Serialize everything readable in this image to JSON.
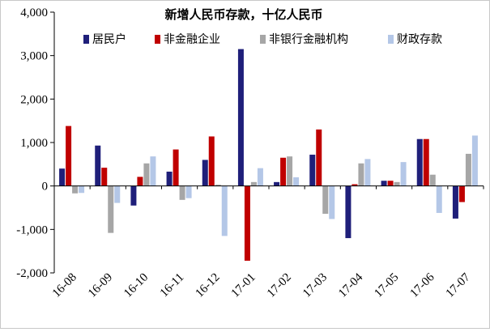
{
  "chart_data": {
    "type": "bar",
    "title": "新增人民币存款，十亿人民币",
    "xlabel": "",
    "ylabel": "",
    "ylim": [
      -2000,
      4000
    ],
    "yticks": [
      4000,
      3000,
      2000,
      1000,
      0,
      -1000,
      -2000
    ],
    "ytick_labels": [
      "4,000",
      "3,000",
      "2,000",
      "1,000",
      "0",
      "-1,000",
      "-2,000"
    ],
    "categories": [
      "16-08",
      "16-09",
      "16-10",
      "16-11",
      "16-12",
      "17-01",
      "17-02",
      "17-03",
      "17-04",
      "17-05",
      "17-06",
      "17-07"
    ],
    "legend_position": "top-right",
    "grid": false,
    "series": [
      {
        "name": "居民户",
        "color": "#1f1f7a",
        "values": [
          400,
          930,
          -450,
          330,
          600,
          3150,
          90,
          720,
          -1200,
          120,
          1080,
          -750
        ]
      },
      {
        "name": "非金融企业",
        "color": "#c00000",
        "values": [
          1380,
          420,
          210,
          840,
          1140,
          -1720,
          650,
          1300,
          40,
          120,
          1080,
          -370
        ]
      },
      {
        "name": "非银行金融机构",
        "color": "#a6a6a6",
        "values": [
          -170,
          -1080,
          520,
          -320,
          30,
          90,
          680,
          -640,
          520,
          90,
          260,
          740
        ]
      },
      {
        "name": "财政存款",
        "color": "#b4c7e7",
        "values": [
          -160,
          -390,
          680,
          -280,
          -1150,
          410,
          200,
          -760,
          620,
          550,
          -620,
          1160
        ]
      }
    ]
  }
}
